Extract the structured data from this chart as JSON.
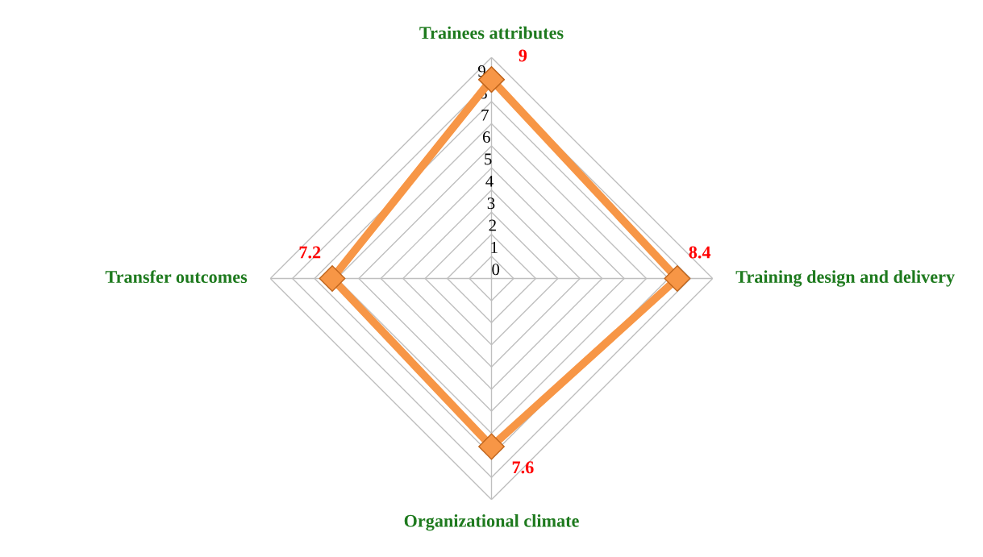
{
  "chart_data": {
    "type": "radar",
    "categories": [
      "Trainees attributes",
      "Training design and delivery",
      "Organizational climate",
      "Transfer outcomes"
    ],
    "series": [
      {
        "color": "#f79646",
        "values": [
          9,
          8.4,
          7.6,
          7.2
        ]
      }
    ],
    "ylim": [
      0,
      10
    ],
    "yticks": [
      0,
      1,
      2,
      3,
      4,
      5,
      6,
      7,
      8,
      9
    ],
    "grid": true,
    "marker": "diamond",
    "line_style": "solid",
    "data_labels": true
  }
}
